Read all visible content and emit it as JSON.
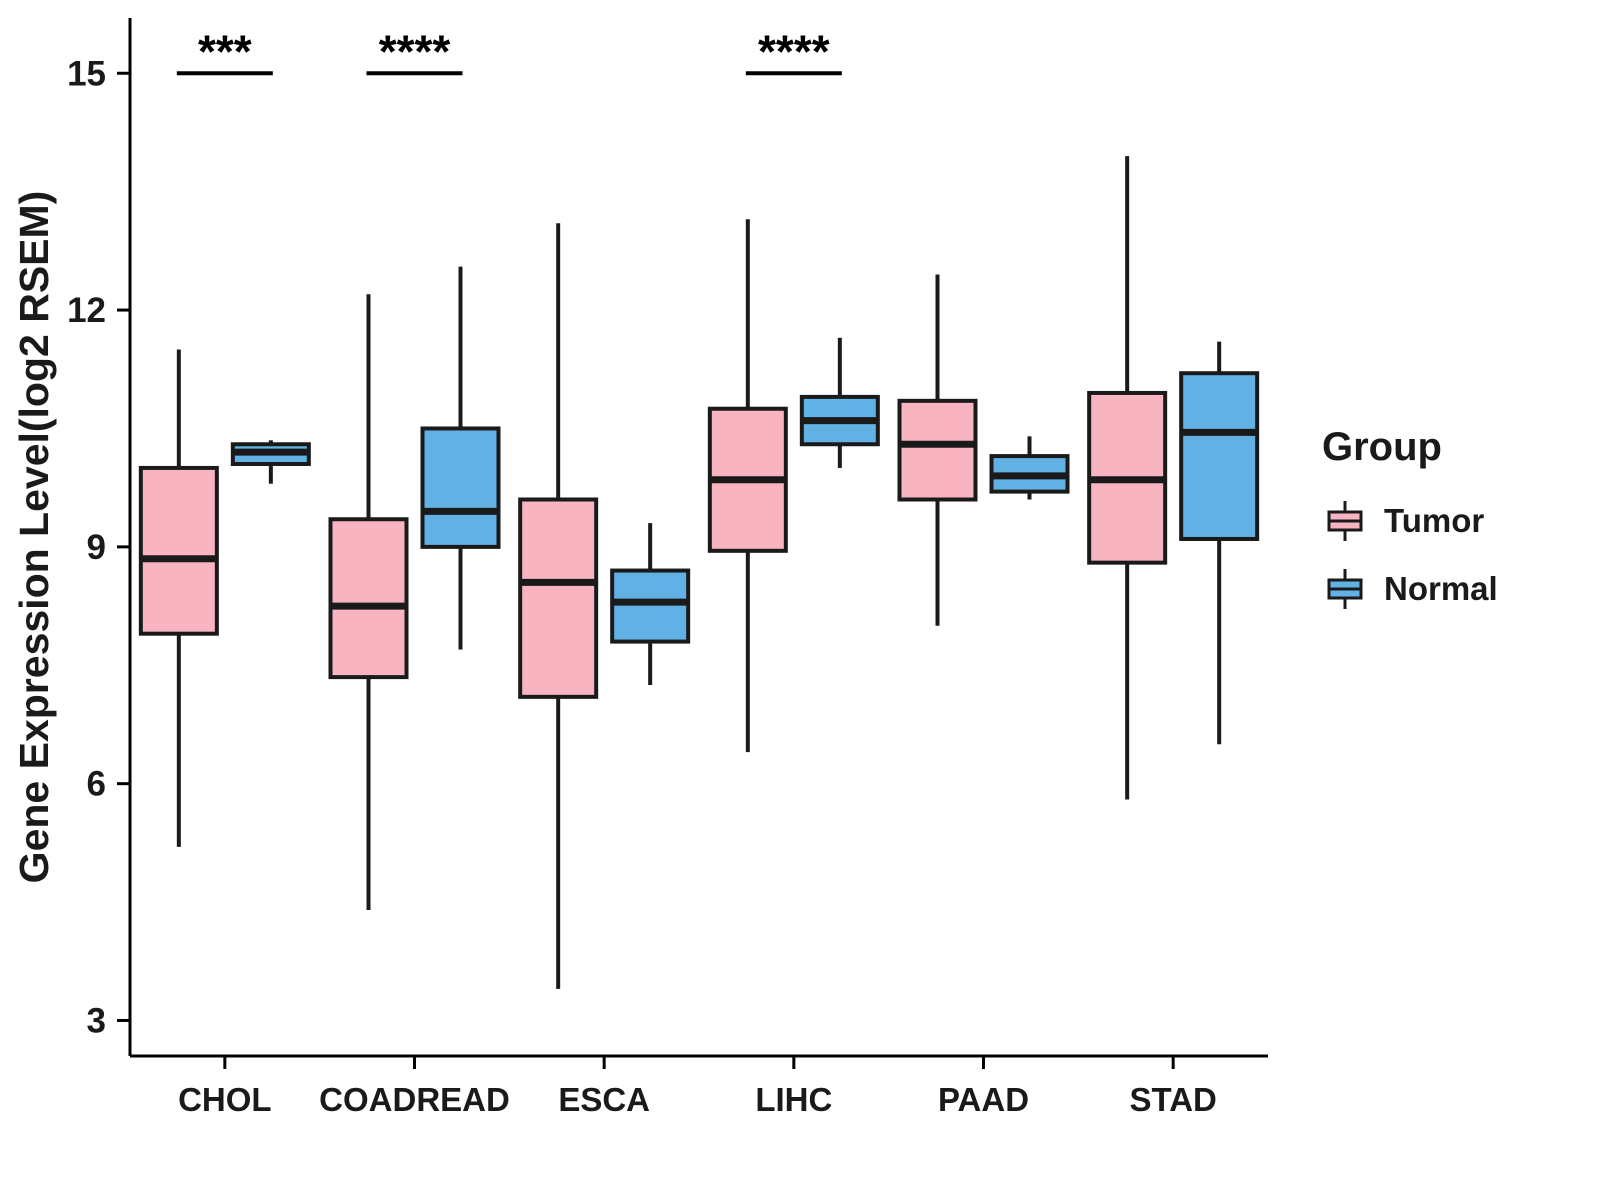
{
  "chart_data": {
    "type": "boxplot",
    "title": "",
    "xlabel": "",
    "ylabel": "Gene Expression Level(log2 RSEM)",
    "yticks": [
      3,
      6,
      9,
      12,
      15
    ],
    "ylim": [
      2.55,
      15.7
    ],
    "grid": false,
    "categories": [
      "CHOL",
      "COADREAD",
      "ESCA",
      "LIHC",
      "PAAD",
      "STAD"
    ],
    "series": [
      {
        "name": "Tumor",
        "color": "#F9B4C1",
        "boxes": [
          {
            "low": 5.2,
            "q1": 7.9,
            "median": 8.85,
            "q3": 10.0,
            "high": 11.5
          },
          {
            "low": 4.4,
            "q1": 7.35,
            "median": 8.25,
            "q3": 9.35,
            "high": 12.2
          },
          {
            "low": 3.4,
            "q1": 7.1,
            "median": 8.55,
            "q3": 9.6,
            "high": 13.1
          },
          {
            "low": 6.4,
            "q1": 8.95,
            "median": 9.85,
            "q3": 10.75,
            "high": 13.15
          },
          {
            "low": 8.0,
            "q1": 9.6,
            "median": 10.3,
            "q3": 10.85,
            "high": 12.45
          },
          {
            "low": 5.8,
            "q1": 8.8,
            "median": 9.85,
            "q3": 10.95,
            "high": 13.95
          }
        ]
      },
      {
        "name": "Normal",
        "color": "#61B1E5",
        "boxes": [
          {
            "low": 9.8,
            "q1": 10.05,
            "median": 10.2,
            "q3": 10.3,
            "high": 10.35
          },
          {
            "low": 7.7,
            "q1": 9.0,
            "median": 9.45,
            "q3": 10.5,
            "high": 12.55
          },
          {
            "low": 7.25,
            "q1": 7.8,
            "median": 8.3,
            "q3": 8.7,
            "high": 9.3
          },
          {
            "low": 10.0,
            "q1": 10.3,
            "median": 10.6,
            "q3": 10.9,
            "high": 11.65
          },
          {
            "low": 9.6,
            "q1": 9.7,
            "median": 9.9,
            "q3": 10.15,
            "high": 10.4
          },
          {
            "low": 6.5,
            "q1": 9.1,
            "median": 10.45,
            "q3": 11.2,
            "high": 11.6
          }
        ]
      }
    ],
    "significance": [
      {
        "category": "CHOL",
        "label": "***",
        "y": 15.0
      },
      {
        "category": "COADREAD",
        "label": "****",
        "y": 15.0
      },
      {
        "category": "LIHC",
        "label": "****",
        "y": 15.0
      }
    ],
    "legend": {
      "title": "Group",
      "items": [
        "Tumor",
        "Normal"
      ],
      "position": "right"
    },
    "colors": {
      "axis": "#000000",
      "box_stroke": "#1a1a1a",
      "text": "#1a1a1a"
    }
  }
}
